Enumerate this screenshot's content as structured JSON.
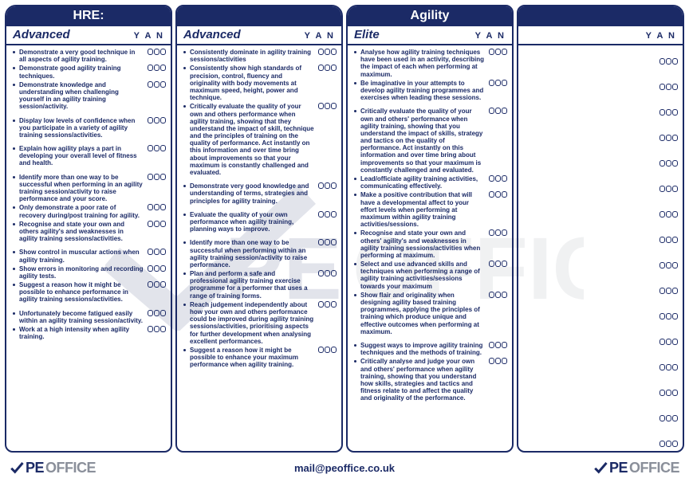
{
  "colors": {
    "navy": "#1b2a66",
    "grey": "#8a8f9a",
    "bg": "#ffffff"
  },
  "top_titles": [
    "HRE:",
    "",
    "Agility",
    ""
  ],
  "yan_label": "Y  A  N",
  "columns": [
    {
      "level": "Advanced",
      "items": [
        {
          "t": "Demonstrate a very good technique in all aspects of agility training."
        },
        {
          "t": "Demonstrate good agility training techniques."
        },
        {
          "t": "Demonstrate knowledge and understanding when challenging yourself in an agility training session/activity."
        },
        {
          "t": "Display low levels of confidence when you participate in a variety of agility training sessions/activities.",
          "gap": true
        },
        {
          "t": "Explain how agility plays a part in developing your overall level of fitness and health.",
          "gap": true
        },
        {
          "t": "Identify more than one way to be successful when performing in an agility training session/activity to raise performance and your score.",
          "gap": true
        },
        {
          "t": "Only demonstrate a poor rate of recovery during/post training for agility."
        },
        {
          "t": "Recognise and state your own and others agility's and weaknesses in agility training sessions/activities."
        },
        {
          "t": "Show control in muscular actions when agility training.",
          "gap": true
        },
        {
          "t": "Show errors in monitoring and recording agility tests."
        },
        {
          "t": "Suggest a reason how it might be possible to enhance performance in agility training sessions/activities."
        },
        {
          "t": "Unfortunately become fatigued easily within an agility training session/activity.",
          "gap": true
        },
        {
          "t": "Work at a high intensity when agility training."
        }
      ]
    },
    {
      "level": "Advanced",
      "items": [
        {
          "t": "Consistently dominate in agility training sessions/activities"
        },
        {
          "t": "Consistently show high standards of precision, control, fluency and originality with body movements at maximum speed, height, power and technique."
        },
        {
          "t": "Critically evaluate the quality of your own and others performance when agility training, showing that they understand the impact of skill, technique and the principles of training on the quality of performance. Act instantly on this information and over time bring about improvements so that your maximum is constantly challenged and evaluated."
        },
        {
          "t": "Demonstrate very good knowledge and understanding of terms, strategies and principles for agility training.",
          "gap": true
        },
        {
          "t": "Evaluate the quality of your own performance when agility training, planning ways to improve.",
          "gap": true
        },
        {
          "t": "Identify more than one way to be successful when performing within an agility training session/activity to raise performance.",
          "gap": true
        },
        {
          "t": "Plan and perform a safe and professional agility training exercise programme for a performer that uses a range of training forms."
        },
        {
          "t": "Reach judgement independently about how your own and others performance could be improved during agility training sessions/activities, prioritising aspects for further development when analysing excellent performances."
        },
        {
          "t": "Suggest a reason how it might be possible to enhance your maximum performance when agility training."
        }
      ]
    },
    {
      "level": "Elite",
      "items": [
        {
          "t": "Analyse how agility training techniques have been used in an activity, describing the impact of each when performing at maximum."
        },
        {
          "t": "Be imaginative in your attempts to develop agility training programmes and exercises when leading these sessions."
        },
        {
          "t": "Critically evaluate the quality of your own and others' performance when agility training, showing that you understand the impact of skills, strategy and tactics on the quality of performance. Act instantly on this information and over time bring about improvements so that your maximum is constantly challenged and evaluated.",
          "gap": true
        },
        {
          "t": "Lead/officiate agility training activities, communicating effectively."
        },
        {
          "t": "Make a positive contribution that will have a developmental affect to your effort levels when performing at maximum within agility training activities/sessions."
        },
        {
          "t": "Recognise and state your own and others' agility's and weaknesses in agility training sessions/activities when performing at maximum."
        },
        {
          "t": "Select and use advanced skills and techniques when performing a range of agility training activities/sessions towards your maximum"
        },
        {
          "t": "Show flair and originality when designing agility based training programmes, applying the principles of training which produce unique and effective outcomes when performing at maximum."
        },
        {
          "t": "Suggest ways to improve agility training techniques and the methods of training.",
          "gap": true
        },
        {
          "t": "Critically analyse and judge your own and others' performance when agility training, showing that you understand how skills, strategies and tactics and fitness relate to and affect the quality and originality of the performance."
        }
      ]
    },
    {
      "level": "",
      "blanks": 16
    }
  ],
  "footer": {
    "brand_pe": "PE",
    "brand_office": "OFFICE",
    "mail": "mail@peoffice.co.uk"
  },
  "watermark": {
    "pe": "PE",
    "office": "OFFICE"
  }
}
